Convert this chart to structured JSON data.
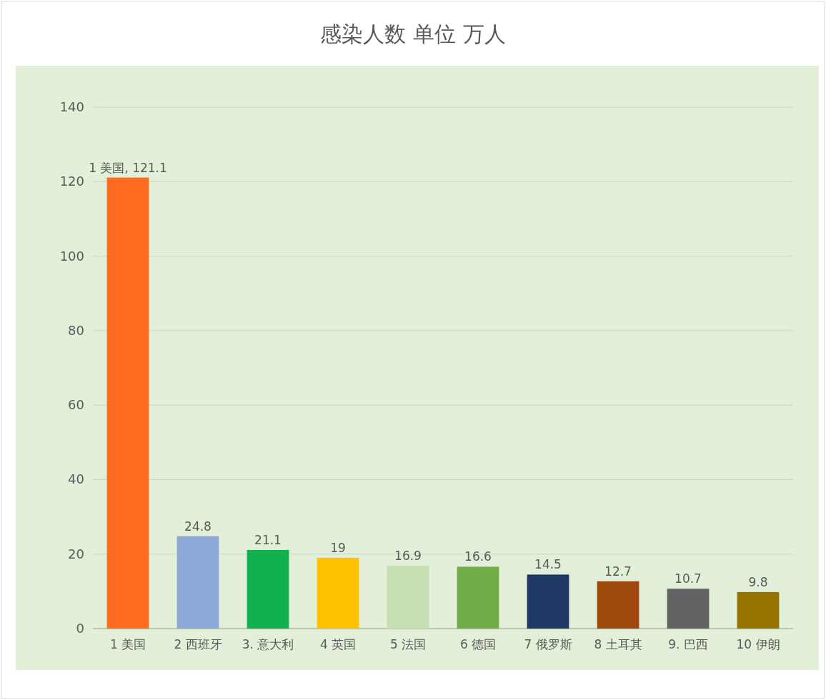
{
  "chart_data": {
    "type": "bar",
    "title": "感染人数 单位 万人",
    "categories": [
      "1 美国",
      "2 西班牙",
      "3. 意大利",
      "4 英国",
      "5 法国",
      "6 德国",
      "7 俄罗斯",
      "8 土耳其",
      "9. 巴西",
      "10 伊朗"
    ],
    "values": [
      121.1,
      24.8,
      21.1,
      19,
      16.9,
      16.6,
      14.5,
      12.7,
      10.7,
      9.8
    ],
    "value_labels": [
      "1 美国, 121.1",
      "24.8",
      "21.1",
      "19",
      "16.9",
      "16.6",
      "14.5",
      "12.7",
      "10.7",
      "9.8"
    ],
    "colors": [
      "#ff6a21",
      "#8eaadb",
      "#13b050",
      "#ffc000",
      "#c6e0b4",
      "#70ad47",
      "#203864",
      "#9e480e",
      "#636363",
      "#997300"
    ],
    "ylim": [
      0,
      140
    ],
    "yticks": [
      0,
      20,
      40,
      60,
      80,
      100,
      120,
      140
    ],
    "grid": "y"
  }
}
